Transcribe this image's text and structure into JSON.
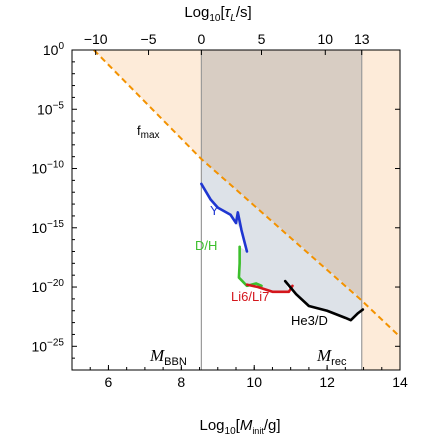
{
  "chart_data": {
    "type": "line",
    "title": "",
    "xlabel": {
      "main": "Log",
      "sub": "10",
      "bracket_open": "[",
      "var": "M",
      "var_sub": "init",
      "unit": "/g]"
    },
    "top_xlabel": {
      "main": "Log",
      "sub": "10",
      "bracket_open": "[",
      "var": "τ",
      "var_sub": "L",
      "unit": "/s]"
    },
    "xlim": [
      5,
      14
    ],
    "ylim_log10": [
      -27,
      0
    ],
    "y_scale": "log",
    "x_ticks": [
      {
        "value": 6,
        "label": "6"
      },
      {
        "value": 8,
        "label": "8"
      },
      {
        "value": 10,
        "label": "10"
      },
      {
        "value": 12,
        "label": "12"
      },
      {
        "value": 14,
        "label": "14"
      }
    ],
    "top_ticks": [
      {
        "value": 5.65,
        "label": "−10"
      },
      {
        "value": 7.1,
        "label": "−5"
      },
      {
        "value": 8.55,
        "label": "0"
      },
      {
        "value": 10.2,
        "label": "5"
      },
      {
        "value": 11.95,
        "label": "10"
      },
      {
        "value": 12.95,
        "label": "13"
      }
    ],
    "y_ticks": [
      {
        "exp": 0,
        "base": "10",
        "sup": "0"
      },
      {
        "exp": -5,
        "base": "10",
        "sup": "−5"
      },
      {
        "exp": -10,
        "base": "10",
        "sup": "−10"
      },
      {
        "exp": -15,
        "base": "10",
        "sup": "−15"
      },
      {
        "exp": -20,
        "base": "10",
        "sup": "−20"
      },
      {
        "exp": -25,
        "base": "10",
        "sup": "−25"
      }
    ],
    "regions": [
      {
        "name": "excluded-orange",
        "color": "#fdebd9",
        "x_range": [
          5,
          14
        ],
        "description": "above f_max"
      },
      {
        "name": "brown-band",
        "color": "#d8cdc3",
        "x_range": [
          8.55,
          12.95
        ]
      },
      {
        "name": "blue-allowed",
        "color": "#dde2e8"
      }
    ],
    "fmax_line": {
      "label_main": "f",
      "label_sub": "max",
      "color": "#f39200",
      "points": [
        [
          5.6,
          0
        ],
        [
          8.55,
          -9.2
        ],
        [
          12.9,
          -21.0
        ],
        [
          14,
          -24.2
        ]
      ]
    },
    "vertical_lines": [
      {
        "x": 8.55,
        "color": "#9a9a9a"
      },
      {
        "x": 12.95,
        "color": "#9a9a9a"
      }
    ],
    "series": [
      {
        "name": "Y",
        "color": "#1f36d1",
        "points": [
          [
            8.55,
            -11.3
          ],
          [
            8.8,
            -12.6
          ],
          [
            9.0,
            -13.3
          ],
          [
            9.35,
            -13.9
          ],
          [
            9.5,
            -14.6
          ],
          [
            9.55,
            -13.7
          ],
          [
            9.65,
            -15.2
          ],
          [
            9.8,
            -17.0
          ]
        ]
      },
      {
        "name": "D/H",
        "color": "#3cbf2c",
        "points": [
          [
            9.6,
            -16.6
          ],
          [
            9.6,
            -18.0
          ],
          [
            9.58,
            -19.2
          ],
          [
            9.8,
            -19.9
          ],
          [
            10.05,
            -19.7
          ],
          [
            10.2,
            -19.9
          ]
        ]
      },
      {
        "name": "Li6/Li7",
        "color": "#d4161c",
        "points": [
          [
            9.8,
            -19.8
          ],
          [
            10.1,
            -20.0
          ],
          [
            10.5,
            -20.4
          ],
          [
            10.95,
            -20.4
          ],
          [
            11.05,
            -19.9
          ]
        ]
      },
      {
        "name": "He3/D",
        "color": "#000000",
        "points": [
          [
            10.85,
            -19.5
          ],
          [
            11.15,
            -20.6
          ],
          [
            11.5,
            -21.6
          ],
          [
            12.0,
            -22.0
          ],
          [
            12.5,
            -22.6
          ],
          [
            12.65,
            -22.8
          ],
          [
            12.85,
            -22.2
          ],
          [
            12.98,
            -21.9
          ]
        ]
      }
    ],
    "region_labels": [
      {
        "main": "M",
        "sub": "BBN"
      },
      {
        "main": "M",
        "sub": "rec"
      }
    ]
  }
}
